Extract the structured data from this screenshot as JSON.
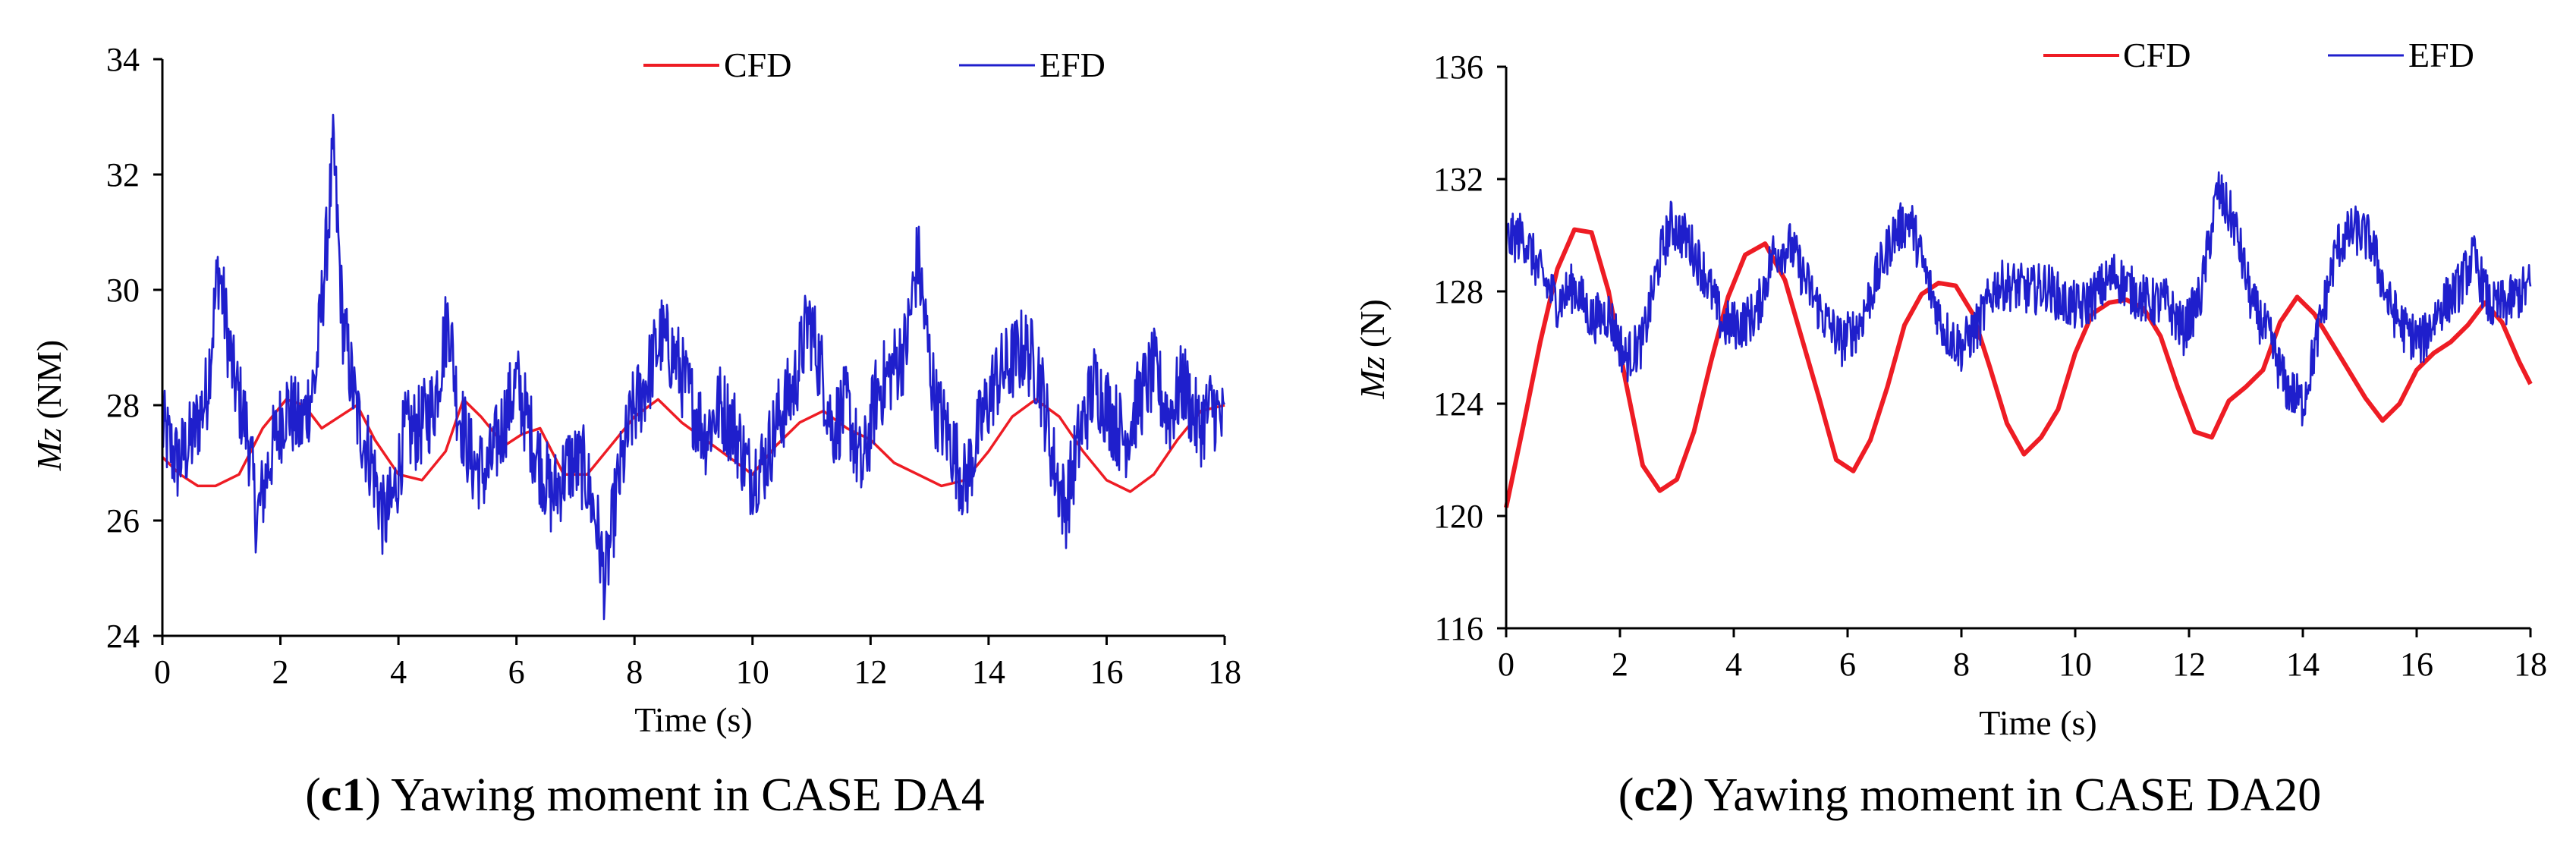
{
  "colors": {
    "cfd": "#ee1c24",
    "efd": "#1f1fcc",
    "axis": "#000000"
  },
  "chart_data": [
    {
      "type": "line",
      "caption_id": "c1",
      "caption_text": ") Yawing moment in CASE DA4",
      "xlabel": "Time (s)",
      "ylabel_italic": "Mz",
      "ylabel_unit": " (NM)",
      "xlim": [
        0,
        18
      ],
      "ylim": [
        24,
        34
      ],
      "xticks": [
        0,
        2,
        4,
        6,
        8,
        10,
        12,
        14,
        16,
        18
      ],
      "yticks": [
        24,
        26,
        28,
        30,
        32,
        34
      ],
      "grid": false,
      "legend_position": "top-right",
      "series": [
        {
          "name": "CFD",
          "color": "#ee1c24",
          "noise": 0,
          "x": [
            0,
            0.3,
            0.6,
            0.9,
            1.3,
            1.7,
            2.1,
            2.4,
            2.7,
            3.0,
            3.3,
            3.6,
            4.0,
            4.4,
            4.8,
            5.1,
            5.4,
            5.8,
            6.1,
            6.4,
            6.8,
            7.2,
            7.6,
            8.0,
            8.4,
            8.8,
            9.2,
            9.6,
            10.0,
            10.4,
            10.8,
            11.2,
            11.6,
            12.0,
            12.4,
            12.8,
            13.2,
            13.6,
            14.0,
            14.4,
            14.8,
            15.2,
            15.6,
            16.0,
            16.4,
            16.8,
            17.2,
            17.6,
            18.0
          ],
          "y": [
            27.1,
            26.8,
            26.6,
            26.6,
            26.8,
            27.6,
            28.1,
            28.0,
            27.6,
            27.8,
            28.0,
            27.4,
            26.8,
            26.7,
            27.2,
            28.1,
            27.8,
            27.3,
            27.5,
            27.6,
            26.8,
            26.8,
            27.3,
            27.8,
            28.1,
            27.7,
            27.4,
            27.1,
            26.8,
            27.3,
            27.7,
            27.9,
            27.6,
            27.4,
            27.0,
            26.8,
            26.6,
            26.7,
            27.2,
            27.8,
            28.1,
            27.8,
            27.2,
            26.7,
            26.5,
            26.8,
            27.4,
            27.9,
            28.0
          ]
        },
        {
          "name": "EFD",
          "color": "#1f1fcc",
          "noise": 0.75,
          "x": [
            0,
            0.25,
            0.5,
            0.75,
            0.95,
            1.2,
            1.45,
            1.6,
            1.85,
            2.1,
            2.35,
            2.6,
            2.8,
            2.9,
            3.05,
            3.3,
            3.55,
            3.75,
            3.9,
            4.1,
            4.35,
            4.6,
            4.85,
            5.0,
            5.25,
            5.5,
            5.75,
            6.0,
            6.3,
            6.6,
            6.9,
            7.15,
            7.35,
            7.5,
            7.7,
            7.95,
            8.2,
            8.45,
            8.7,
            8.95,
            9.2,
            9.45,
            9.7,
            9.95,
            10.2,
            10.45,
            10.7,
            10.95,
            11.15,
            11.35,
            11.6,
            11.85,
            12.1,
            12.35,
            12.6,
            12.8,
            12.95,
            13.1,
            13.35,
            13.6,
            13.85,
            14.1,
            14.35,
            14.6,
            14.85,
            15.1,
            15.3,
            15.55,
            15.8,
            16.05,
            16.3,
            16.55,
            16.8,
            17.05,
            17.3,
            17.55,
            17.8,
            18.0
          ],
          "y": [
            27.6,
            27.0,
            27.4,
            28.2,
            30.4,
            28.5,
            27.5,
            26.0,
            27.2,
            28.0,
            27.6,
            28.5,
            31.0,
            32.4,
            29.5,
            27.8,
            27.0,
            26.0,
            26.3,
            27.5,
            27.6,
            28.0,
            29.6,
            28.0,
            27.0,
            26.8,
            27.6,
            28.4,
            27.3,
            26.4,
            27.0,
            26.9,
            26.0,
            24.9,
            26.5,
            27.8,
            28.4,
            29.2,
            28.8,
            28.1,
            27.5,
            28.0,
            27.6,
            26.8,
            27.0,
            27.8,
            28.3,
            29.5,
            28.7,
            27.6,
            28.0,
            26.8,
            28.2,
            28.6,
            29.0,
            30.6,
            29.2,
            28.0,
            27.4,
            26.6,
            27.6,
            28.4,
            28.7,
            29.0,
            28.6,
            27.0,
            26.2,
            27.5,
            28.4,
            27.9,
            27.4,
            28.1,
            28.6,
            27.8,
            28.4,
            27.6,
            28.0,
            27.6
          ]
        }
      ]
    },
    {
      "type": "line",
      "caption_id": "c2",
      "caption_text": ") Yawing moment in CASE DA20",
      "xlabel": "Time (s)",
      "ylabel_italic": "Mz",
      "ylabel_unit": " (N)",
      "xlim": [
        0,
        18
      ],
      "ylim": [
        116,
        136
      ],
      "xticks": [
        0,
        2,
        4,
        6,
        8,
        10,
        12,
        14,
        16,
        18
      ],
      "yticks": [
        116,
        120,
        124,
        128,
        132,
        136
      ],
      "grid": false,
      "legend_position": "top-right",
      "series": [
        {
          "name": "CFD",
          "color": "#ee1c24",
          "noise": 0,
          "x": [
            0,
            0.3,
            0.6,
            0.9,
            1.2,
            1.5,
            1.8,
            2.1,
            2.4,
            2.7,
            3.0,
            3.3,
            3.6,
            3.9,
            4.2,
            4.55,
            4.9,
            5.2,
            5.5,
            5.8,
            6.1,
            6.4,
            6.7,
            7.0,
            7.3,
            7.6,
            7.9,
            8.2,
            8.5,
            8.8,
            9.1,
            9.4,
            9.7,
            10.0,
            10.3,
            10.6,
            10.9,
            11.2,
            11.5,
            11.8,
            12.1,
            12.4,
            12.7,
            13.0,
            13.3,
            13.6,
            13.9,
            14.2,
            14.5,
            14.8,
            15.1,
            15.4,
            15.7,
            16.0,
            16.3,
            16.6,
            16.9,
            17.2,
            17.5,
            17.8,
            18.0
          ],
          "y": [
            120.3,
            123.2,
            126.2,
            128.8,
            130.2,
            130.1,
            128.0,
            124.8,
            121.8,
            120.9,
            121.3,
            123.0,
            125.5,
            127.8,
            129.3,
            129.7,
            128.4,
            126.3,
            124.2,
            122.0,
            121.6,
            122.7,
            124.6,
            126.8,
            127.9,
            128.3,
            128.2,
            127.2,
            125.3,
            123.3,
            122.2,
            122.8,
            123.8,
            125.8,
            127.2,
            127.6,
            127.7,
            127.4,
            126.4,
            124.6,
            123.0,
            122.8,
            124.1,
            124.6,
            125.2,
            126.9,
            127.8,
            127.2,
            126.2,
            125.2,
            124.2,
            123.4,
            124.0,
            125.2,
            125.8,
            126.2,
            126.8,
            127.6,
            126.9,
            125.5,
            124.7
          ]
        },
        {
          "name": "EFD",
          "color": "#1f1fcc",
          "noise": 0.9,
          "x": [
            0,
            0.3,
            0.6,
            0.9,
            1.2,
            1.5,
            1.8,
            2.1,
            2.4,
            2.7,
            2.9,
            3.2,
            3.5,
            3.8,
            4.1,
            4.4,
            4.7,
            5.0,
            5.3,
            5.6,
            5.9,
            6.2,
            6.5,
            6.8,
            7.1,
            7.4,
            7.7,
            8.0,
            8.3,
            8.6,
            8.9,
            9.2,
            9.5,
            9.8,
            10.1,
            10.4,
            10.7,
            11.0,
            11.3,
            11.6,
            11.9,
            12.2,
            12.5,
            12.8,
            13.1,
            13.4,
            13.7,
            14.0,
            14.3,
            14.6,
            14.9,
            15.2,
            15.5,
            15.8,
            16.1,
            16.4,
            16.7,
            17.0,
            17.3,
            17.6,
            18.0
          ],
          "y": [
            129.8,
            130.0,
            128.6,
            127.6,
            128.2,
            127.0,
            127.2,
            125.6,
            126.2,
            129.2,
            130.4,
            129.8,
            128.6,
            126.8,
            126.8,
            127.2,
            129.4,
            129.6,
            128.2,
            127.0,
            126.2,
            126.8,
            128.4,
            130.0,
            130.6,
            128.4,
            126.6,
            126.0,
            126.8,
            128.2,
            128.2,
            128.0,
            128.2,
            127.6,
            127.4,
            128.0,
            128.6,
            128.0,
            127.6,
            127.6,
            126.6,
            127.8,
            131.6,
            130.4,
            127.6,
            126.4,
            124.6,
            124.0,
            126.8,
            129.6,
            130.2,
            129.8,
            127.6,
            126.6,
            126.2,
            127.4,
            128.0,
            129.2,
            127.4,
            127.6,
            128.2
          ]
        }
      ]
    }
  ]
}
